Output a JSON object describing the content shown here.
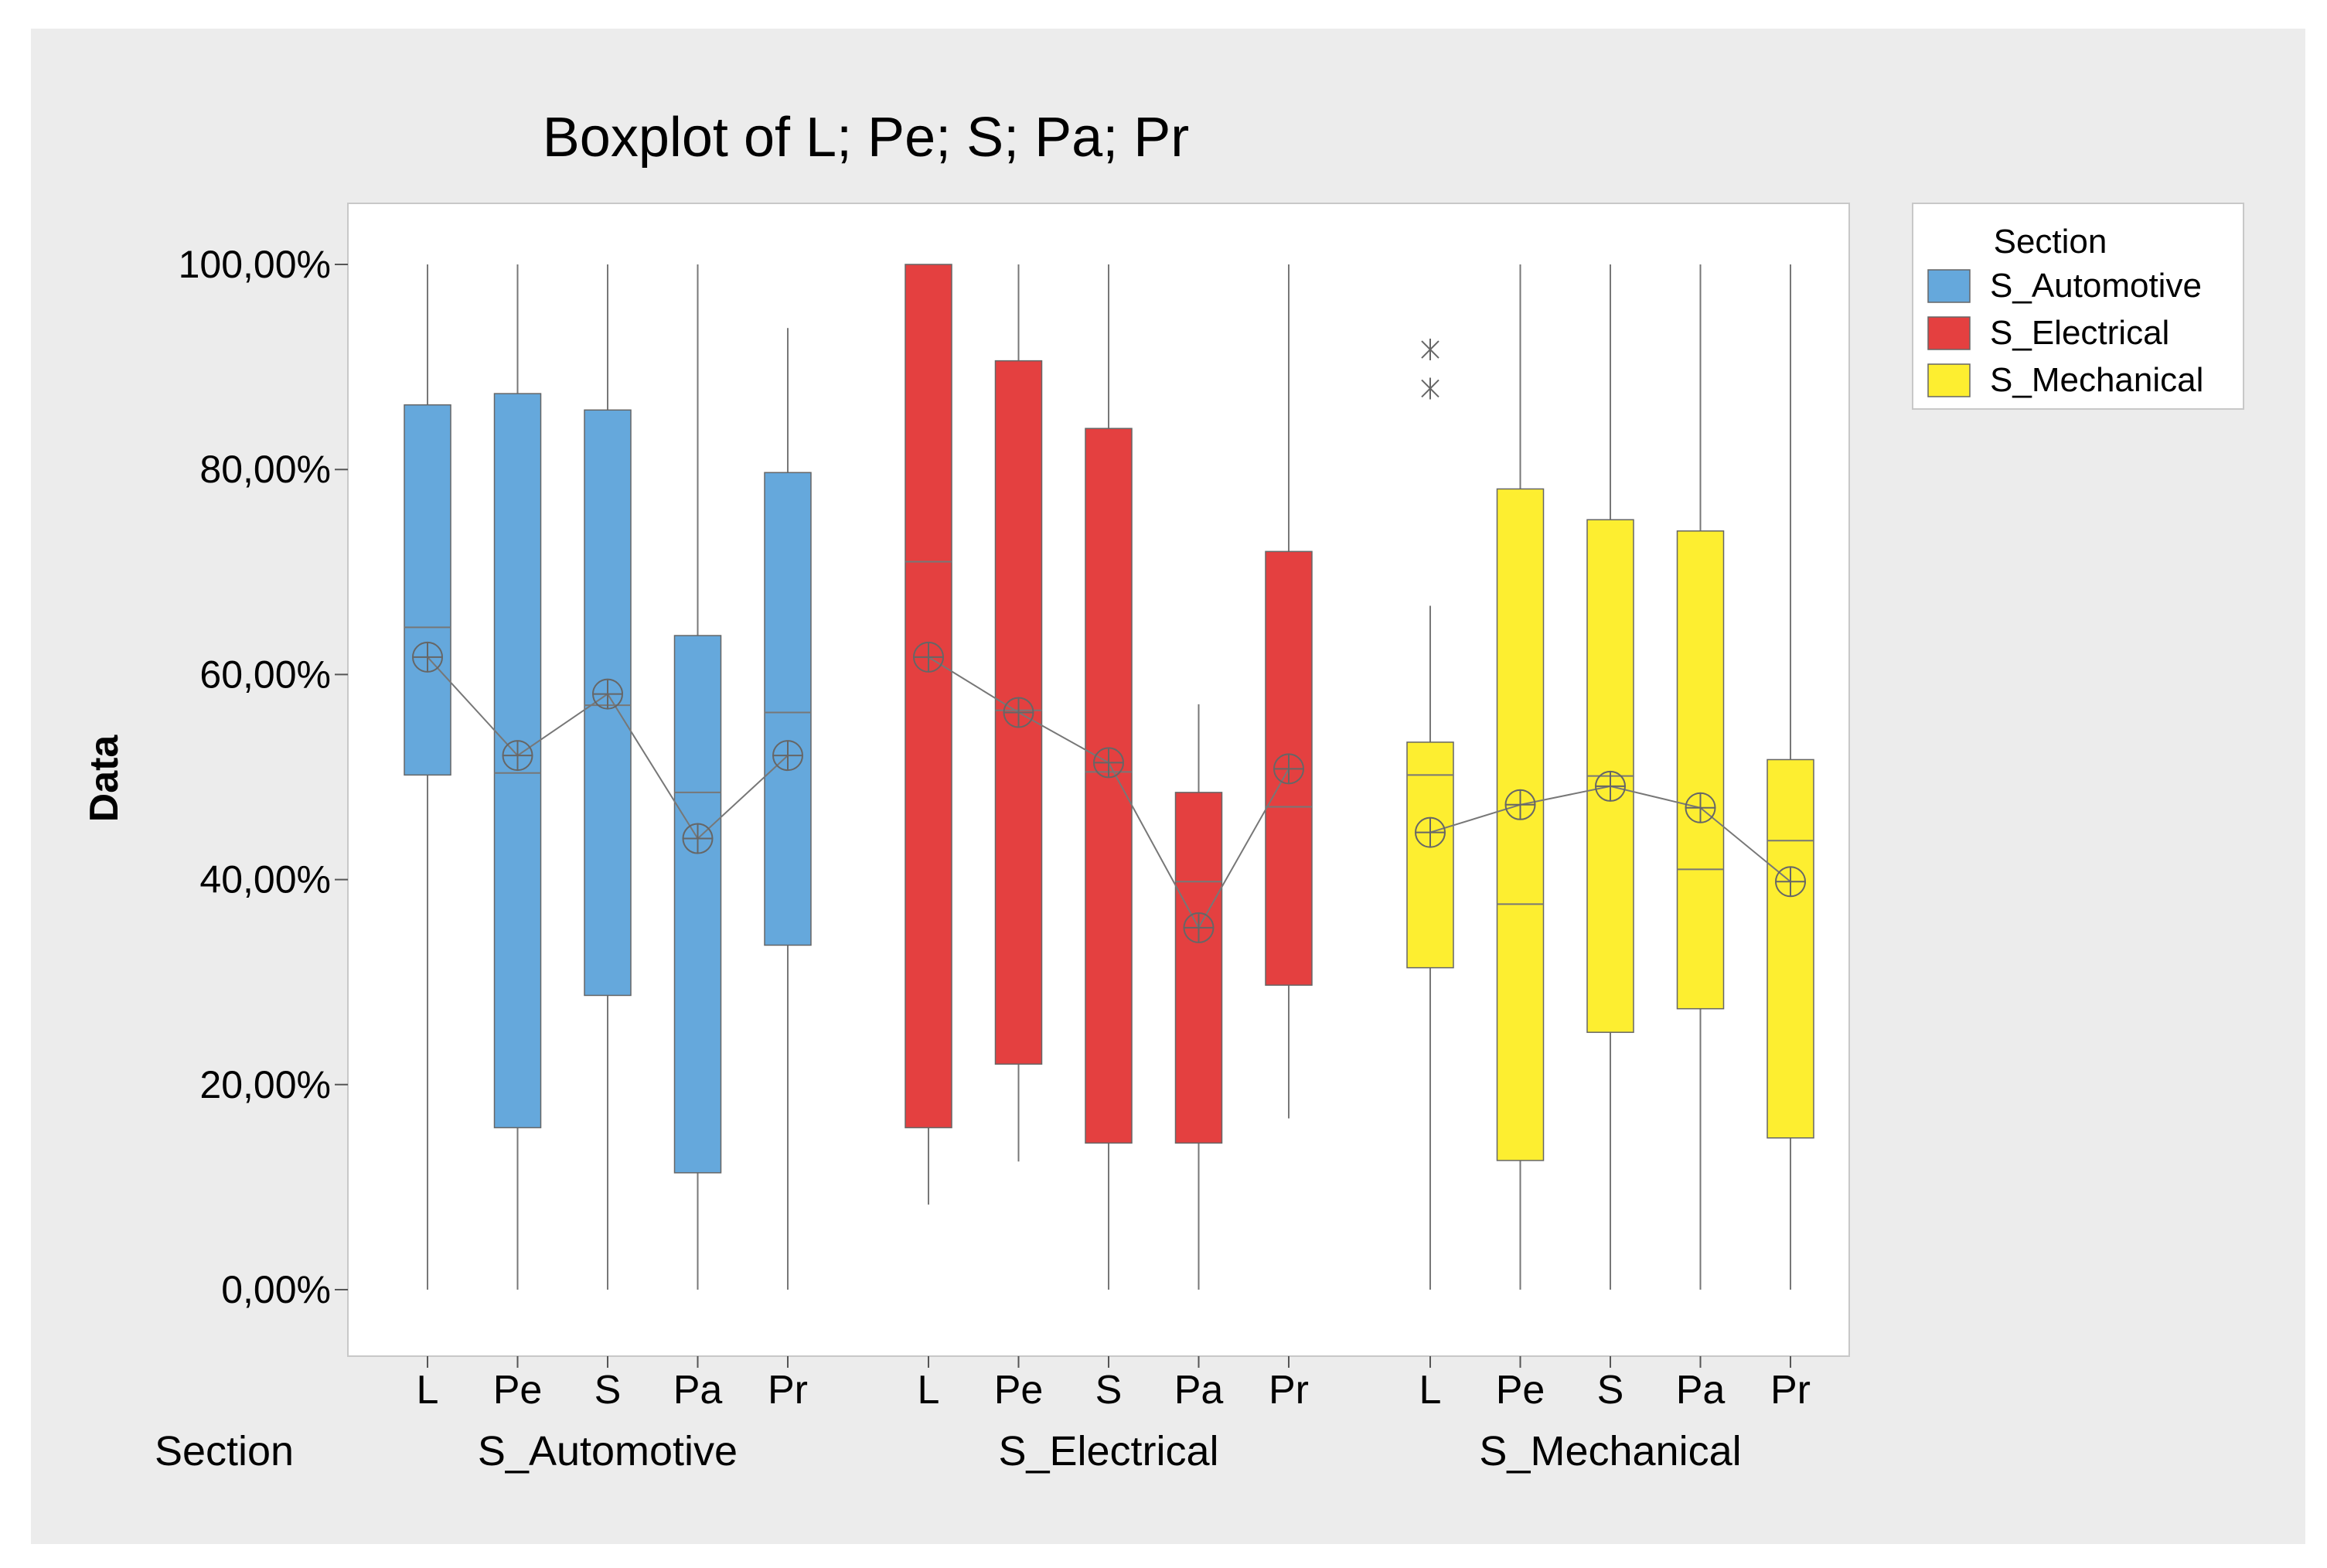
{
  "chart_data": {
    "type": "boxplot",
    "title": "Boxplot of L; Pe; S; Pa; Pr",
    "ylabel": "Data",
    "ylim": [
      -6,
      106
    ],
    "yticks": [
      0,
      20,
      40,
      60,
      80,
      100
    ],
    "ytick_labels": [
      "0,00%",
      "20,00%",
      "40,00%",
      "60,00%",
      "80,00%",
      "100,00%"
    ],
    "x_axis_row_label": "Section",
    "variables": [
      "L",
      "Pe",
      "S",
      "Pa",
      "Pr"
    ],
    "legend": {
      "title": "Section",
      "position": "right"
    },
    "groups": [
      {
        "name": "S_Automotive",
        "color": "#65a8dc",
        "boxes": [
          {
            "var": "L",
            "min": 0,
            "q1": 50.2,
            "median": 64.6,
            "q3": 86.3,
            "max": 100,
            "mean": 61.7,
            "outliers": []
          },
          {
            "var": "Pe",
            "min": 0,
            "q1": 15.8,
            "median": 50.4,
            "q3": 87.4,
            "max": 100,
            "mean": 52.1,
            "outliers": []
          },
          {
            "var": "S",
            "min": 0,
            "q1": 28.7,
            "median": 57.0,
            "q3": 85.8,
            "max": 100,
            "mean": 58.1,
            "outliers": []
          },
          {
            "var": "Pa",
            "min": 0,
            "q1": 11.4,
            "median": 48.5,
            "q3": 63.8,
            "max": 100,
            "mean": 44.0,
            "outliers": []
          },
          {
            "var": "Pr",
            "min": 0,
            "q1": 33.6,
            "median": 56.3,
            "q3": 79.7,
            "max": 93.8,
            "mean": 52.1,
            "outliers": []
          }
        ]
      },
      {
        "name": "S_Electrical",
        "color": "#e44040",
        "boxes": [
          {
            "var": "L",
            "min": 8.3,
            "q1": 15.8,
            "median": 71.0,
            "q3": 100,
            "max": 100,
            "mean": 61.7,
            "outliers": []
          },
          {
            "var": "Pe",
            "min": 12.5,
            "q1": 22.0,
            "median": 56.5,
            "q3": 90.6,
            "max": 100,
            "mean": 56.3,
            "outliers": []
          },
          {
            "var": "S",
            "min": 0,
            "q1": 14.3,
            "median": 50.5,
            "q3": 84.0,
            "max": 100,
            "mean": 51.4,
            "outliers": []
          },
          {
            "var": "Pa",
            "min": 0,
            "q1": 14.3,
            "median": 39.8,
            "q3": 48.5,
            "max": 57.1,
            "mean": 35.3,
            "outliers": []
          },
          {
            "var": "Pr",
            "min": 16.7,
            "q1": 29.7,
            "median": 47.1,
            "q3": 72.0,
            "max": 100,
            "mean": 50.8,
            "outliers": []
          }
        ]
      },
      {
        "name": "S_Mechanical",
        "color": "#fdee30",
        "boxes": [
          {
            "var": "L",
            "min": 0,
            "q1": 31.4,
            "median": 50.2,
            "q3": 53.4,
            "max": 66.7,
            "mean": 44.6,
            "outliers": [
              87.9,
              91.7
            ]
          },
          {
            "var": "Pe",
            "min": 0,
            "q1": 12.6,
            "median": 37.6,
            "q3": 78.1,
            "max": 100,
            "mean": 47.3,
            "outliers": []
          },
          {
            "var": "S",
            "min": 0,
            "q1": 25.1,
            "median": 50.1,
            "q3": 75.1,
            "max": 100,
            "mean": 49.1,
            "outliers": []
          },
          {
            "var": "Pa",
            "min": 0,
            "q1": 27.4,
            "median": 41.0,
            "q3": 74.0,
            "max": 100,
            "mean": 47.0,
            "outliers": []
          },
          {
            "var": "Pr",
            "min": 0,
            "q1": 14.8,
            "median": 43.8,
            "q3": 51.7,
            "max": 100,
            "mean": 39.8,
            "outliers": []
          }
        ]
      }
    ]
  }
}
